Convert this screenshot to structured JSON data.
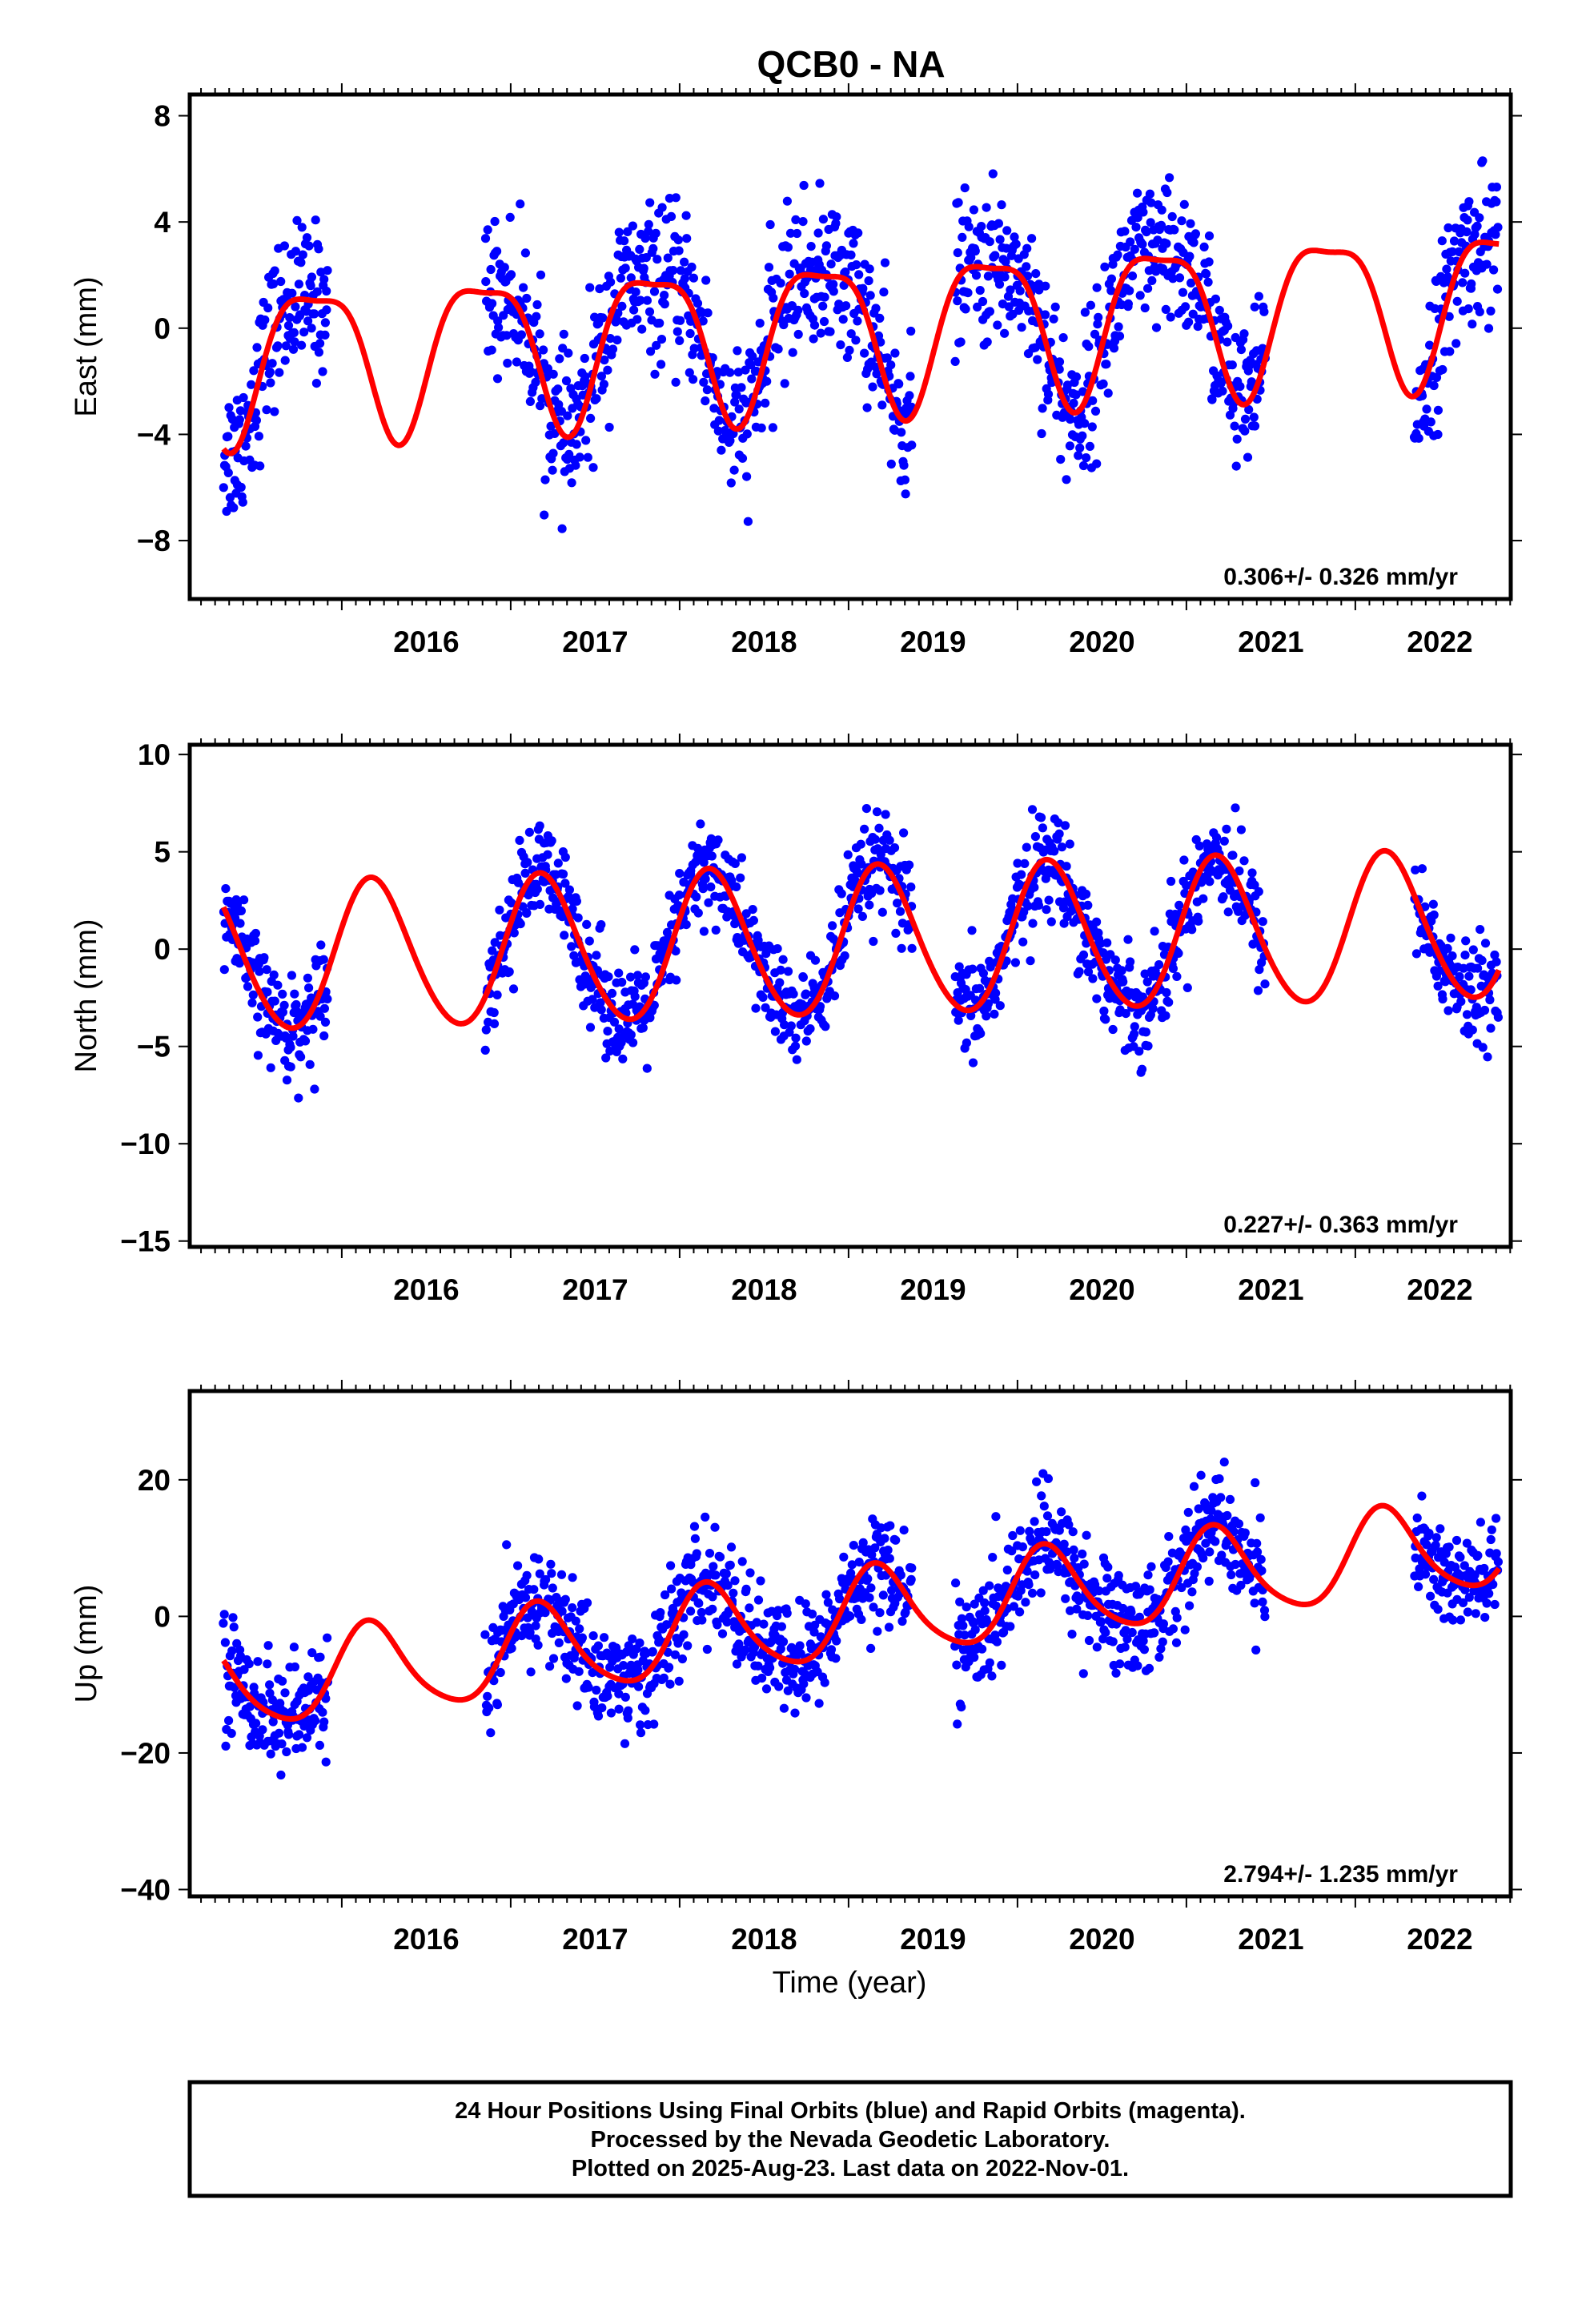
{
  "title": "QCB0 - NA",
  "xlabel": "Time (year)",
  "footer": {
    "line1": "24 Hour Positions Using Final Orbits (blue) and Rapid Orbits (magenta).",
    "line2": "Processed by the Nevada Geodetic Laboratory.",
    "line3": "Plotted on 2025-Aug-23. Last data on 2022-Nov-01."
  },
  "colors": {
    "observed": "#0000ff",
    "model": "#ff0000",
    "frame": "#000000"
  },
  "chart_data": [
    {
      "type": "scatter",
      "panel": "east",
      "ylabel": "East (mm)",
      "rate": "0.306+/- 0.326 mm/yr",
      "xlim": [
        2015.1,
        2022.92
      ],
      "ylim": [
        -10.2,
        8.8
      ],
      "yticks": [
        8,
        4,
        0,
        -4,
        -8
      ],
      "ytick_labels": [
        "8",
        "4",
        "0",
        "−4",
        "−8"
      ],
      "xticks": [
        2016,
        2017,
        2018,
        2019,
        2020,
        2021,
        2022
      ],
      "xtick_labels": [
        "2016",
        "2017",
        "2018",
        "2019",
        "2020",
        "2021",
        "2022"
      ],
      "model": {
        "trend": 0.306,
        "offset": 0.0,
        "ann_amp": 2.8,
        "ann_phase": 2.6,
        "semi_amp": 0.8,
        "semi_phase": 0.4,
        "ref_year": 2019.0
      },
      "series": [
        {
          "name": "Final Orbits",
          "color": "#0000ff",
          "segments": [
            [
              2015.3,
              2015.92
            ],
            [
              2016.85,
              2019.38
            ],
            [
              2019.63,
              2021.47
            ],
            [
              2022.35,
              2022.85
            ]
          ],
          "scatter": 1.4
        },
        {
          "name": "Model",
          "color": "#ff0000",
          "x_range": [
            2015.3,
            2022.85
          ]
        }
      ]
    },
    {
      "type": "scatter",
      "panel": "north",
      "ylabel": "North (mm)",
      "rate": "0.227+/- 0.363 mm/yr",
      "xlim": [
        2015.1,
        2022.92
      ],
      "ylim": [
        -15.3,
        10.5
      ],
      "yticks": [
        10,
        5,
        0,
        -5,
        -10,
        -15
      ],
      "ytick_labels": [
        "10",
        "5",
        "0",
        "−5",
        "−10",
        "−15"
      ],
      "xticks": [
        2016,
        2017,
        2018,
        2019,
        2020,
        2021,
        2022
      ],
      "xtick_labels": [
        "2016",
        "2017",
        "2018",
        "2019",
        "2020",
        "2021",
        "2022"
      ],
      "model": {
        "trend": 0.227,
        "offset": 0.3,
        "ann_amp": 3.8,
        "ann_phase": 0.4,
        "semi_amp": 0.3,
        "semi_phase": 0.0,
        "ref_year": 2019.0
      },
      "series": [
        {
          "name": "Final Orbits",
          "color": "#0000ff",
          "segments": [
            [
              2015.3,
              2015.92
            ],
            [
              2016.85,
              2019.38
            ],
            [
              2019.63,
              2021.47
            ],
            [
              2022.35,
              2022.85
            ]
          ],
          "scatter": 1.3
        },
        {
          "name": "Model",
          "color": "#ff0000",
          "x_range": [
            2015.3,
            2022.85
          ]
        }
      ]
    },
    {
      "type": "scatter",
      "panel": "up",
      "ylabel": "Up (mm)",
      "rate": "2.794+/- 1.235 mm/yr",
      "xlim": [
        2015.1,
        2022.92
      ],
      "ylim": [
        -41,
        33
      ],
      "yticks": [
        20,
        0,
        -20,
        -40
      ],
      "ytick_labels": [
        "20",
        "0",
        "−20",
        "−40"
      ],
      "xticks": [
        2016,
        2017,
        2018,
        2019,
        2020,
        2021,
        2022
      ],
      "xtick_labels": [
        "2016",
        "2017",
        "2018",
        "2019",
        "2020",
        "2021",
        "2022"
      ],
      "model": {
        "trend": 2.794,
        "offset": 0.0,
        "ann_amp": 6.5,
        "ann_phase": 0.5,
        "semi_amp": 1.0,
        "semi_phase": 0.0,
        "ref_year": 2019.0
      },
      "series": [
        {
          "name": "Final Orbits",
          "color": "#0000ff",
          "segments": [
            [
              2015.3,
              2015.92
            ],
            [
              2016.85,
              2019.38
            ],
            [
              2019.63,
              2021.47
            ],
            [
              2022.35,
              2022.85
            ]
          ],
          "scatter": 4.0
        },
        {
          "name": "Model",
          "color": "#ff0000",
          "x_range": [
            2015.3,
            2022.85
          ]
        }
      ]
    }
  ]
}
